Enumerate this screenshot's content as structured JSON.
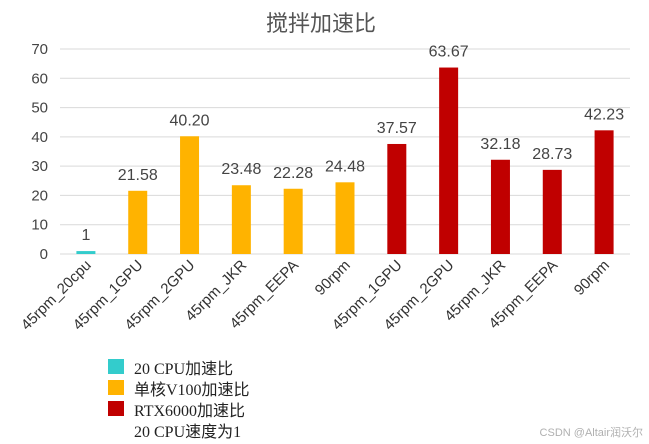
{
  "chart_data": {
    "type": "bar",
    "title": "搅拌加速比",
    "xlabel": "",
    "ylabel": "",
    "ylim": [
      0,
      70
    ],
    "yticks": [
      0,
      10,
      20,
      30,
      40,
      50,
      60,
      70
    ],
    "grid": true,
    "categories": [
      "45rpm_20cpu",
      "45rpm_1GPU",
      "45rpm_2GPU",
      "45rpm_JKR",
      "45rpm_EEPA",
      "90rpm",
      "45rpm_1GPU",
      "45rpm_2GPU",
      "45rpm_JKR",
      "45rpm_EEPA",
      "90rpm"
    ],
    "values": [
      1,
      21.58,
      40.2,
      23.48,
      22.28,
      24.48,
      37.57,
      63.67,
      32.18,
      28.73,
      42.23
    ],
    "value_labels": [
      "1",
      "21.58",
      "40.20",
      "23.48",
      "22.28",
      "24.48",
      "37.57",
      "63.67",
      "32.18",
      "28.73",
      "42.23"
    ],
    "bar_series": [
      0,
      1,
      1,
      1,
      1,
      1,
      2,
      2,
      2,
      2,
      2
    ],
    "series": [
      {
        "name": "20 CPU加速比",
        "color": "#33CCCC"
      },
      {
        "name": "单核V100加速比",
        "color": "#FFB300"
      },
      {
        "name": "RTX6000加速比",
        "color": "#C00000"
      }
    ],
    "legend_position": "bottom-left",
    "note": "20 CPU速度为1"
  },
  "watermark": "CSDN @Altair润沃尔"
}
